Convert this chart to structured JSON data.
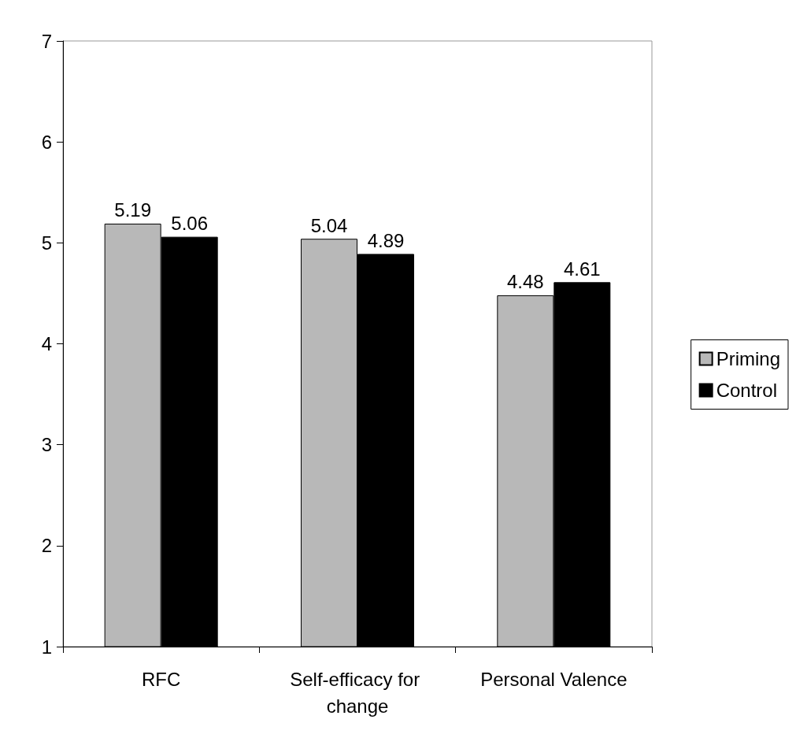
{
  "chart_data": {
    "type": "bar",
    "categories": [
      "RFC",
      "Self-efficacy for change",
      "Personal Valence"
    ],
    "series": [
      {
        "name": "Priming",
        "color": "#b8b8b8",
        "values": [
          5.19,
          5.04,
          4.48
        ]
      },
      {
        "name": "Control",
        "color": "#000000",
        "values": [
          5.06,
          4.89,
          4.61
        ]
      }
    ],
    "ylim": [
      1,
      7
    ],
    "yticks": [
      1,
      2,
      3,
      4,
      5,
      6,
      7
    ],
    "grid": false,
    "legend": "right",
    "data_labels": true
  }
}
